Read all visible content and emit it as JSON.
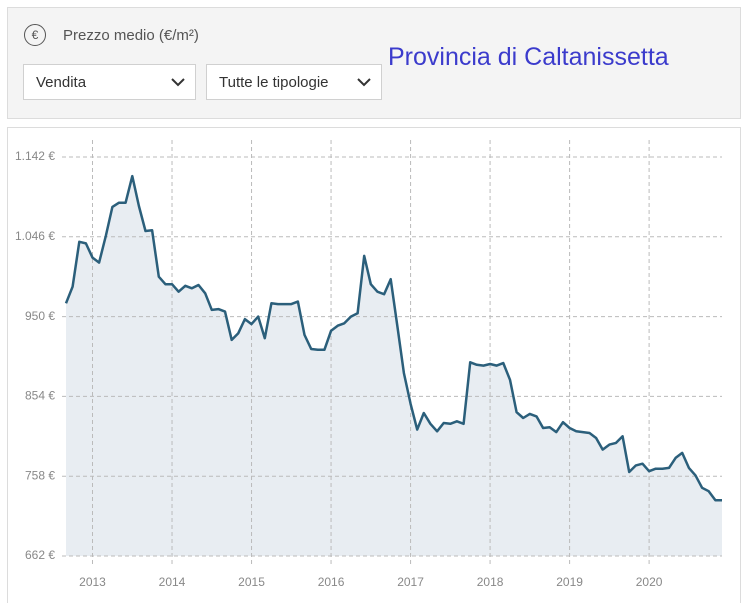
{
  "header": {
    "icon": "€",
    "label": "Prezzo medio (€/m²)",
    "selects": [
      "Vendita",
      "Tutte le tipologie"
    ]
  },
  "chart_data": {
    "type": "area",
    "title": "Provincia di Caltanissetta",
    "categories": [
      null,
      null,
      null,
      null,
      "2013",
      null,
      null,
      null,
      null,
      null,
      null,
      null,
      null,
      null,
      null,
      null,
      "2014",
      null,
      null,
      null,
      null,
      null,
      null,
      null,
      null,
      null,
      null,
      null,
      "2015",
      null,
      null,
      null,
      null,
      null,
      null,
      null,
      null,
      null,
      null,
      null,
      "2016",
      null,
      null,
      null,
      null,
      null,
      null,
      null,
      null,
      null,
      null,
      null,
      "2017",
      null,
      null,
      null,
      null,
      null,
      null,
      null,
      null,
      null,
      null,
      null,
      "2018",
      null,
      null,
      null,
      null,
      null,
      null,
      null,
      null,
      null,
      null,
      null,
      "2019",
      null,
      null,
      null,
      null,
      null,
      null,
      null,
      null,
      null,
      null,
      null,
      "2020",
      null,
      null,
      null,
      null,
      null,
      null,
      null,
      null,
      null,
      null,
      null
    ],
    "values": [
      966,
      986,
      1040,
      1038,
      1021,
      1015,
      1047,
      1082,
      1087,
      1087,
      1119,
      1083,
      1053,
      1054,
      998,
      989,
      989,
      980,
      987,
      984,
      988,
      978,
      958,
      959,
      956,
      922,
      930,
      947,
      941,
      950,
      924,
      966,
      965,
      965,
      965,
      968,
      928,
      911,
      910,
      910,
      933,
      939,
      942,
      950,
      954,
      1023,
      989,
      980,
      977,
      995,
      939,
      882,
      845,
      814,
      834,
      821,
      812,
      822,
      821,
      824,
      821,
      895,
      892,
      891,
      893,
      891,
      894,
      874,
      835,
      828,
      833,
      830,
      816,
      817,
      811,
      823,
      816,
      812,
      811,
      810,
      804,
      790,
      796,
      798,
      806,
      763,
      771,
      773,
      764,
      767,
      767,
      768,
      780,
      786,
      768,
      759,
      744,
      740,
      729,
      729
    ],
    "color": "#2b5f7b",
    "fill": "#e8edf2",
    "ylim": [
      662,
      1142
    ],
    "yticks": [
      {
        "value": 662,
        "label": "662 €"
      },
      {
        "value": 758,
        "label": "758 €"
      },
      {
        "value": 854,
        "label": "854 €"
      },
      {
        "value": 950,
        "label": "950 €"
      },
      {
        "value": 1046,
        "label": "1.046 €"
      },
      {
        "value": 1142,
        "label": "1.142 €"
      }
    ],
    "grid": true
  }
}
